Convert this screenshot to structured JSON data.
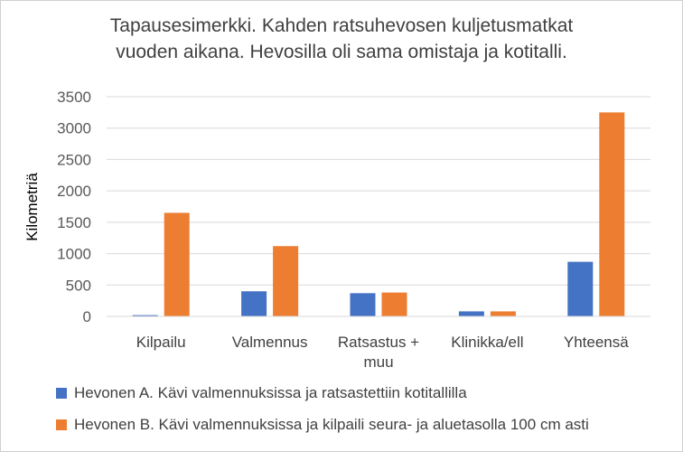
{
  "chart_data": {
    "type": "bar",
    "title": "Tapausesimerkki. Kahden ratsuhevosen kuljetusmatkat\nvuoden aikana. Hevosilla oli sama omistaja ja kotitalli.",
    "ylabel": "Kilometriä",
    "xlabel": "",
    "categories": [
      "Kilpailu",
      "Valmennus",
      "Ratsastus + muu",
      "Klinikka/ell",
      "Yhteensä"
    ],
    "ylim": [
      0,
      3500
    ],
    "yticks": [
      "0",
      "500",
      "1000",
      "1500",
      "2000",
      "2500",
      "3000",
      "3500"
    ],
    "grid": true,
    "legend_position": "bottom",
    "series": [
      {
        "name": "Hevonen A. Kävi valmennuksissa ja ratsastettiin kotitallilla",
        "color": "#4472C4",
        "values": [
          20,
          400,
          370,
          80,
          870
        ]
      },
      {
        "name": "Hevonen B. Kävi valmennuksissa ja kilpaili seura- ja aluetasolla 100 cm asti",
        "color": "#ED7D31",
        "values": [
          1650,
          1120,
          380,
          80,
          3250
        ]
      }
    ]
  }
}
